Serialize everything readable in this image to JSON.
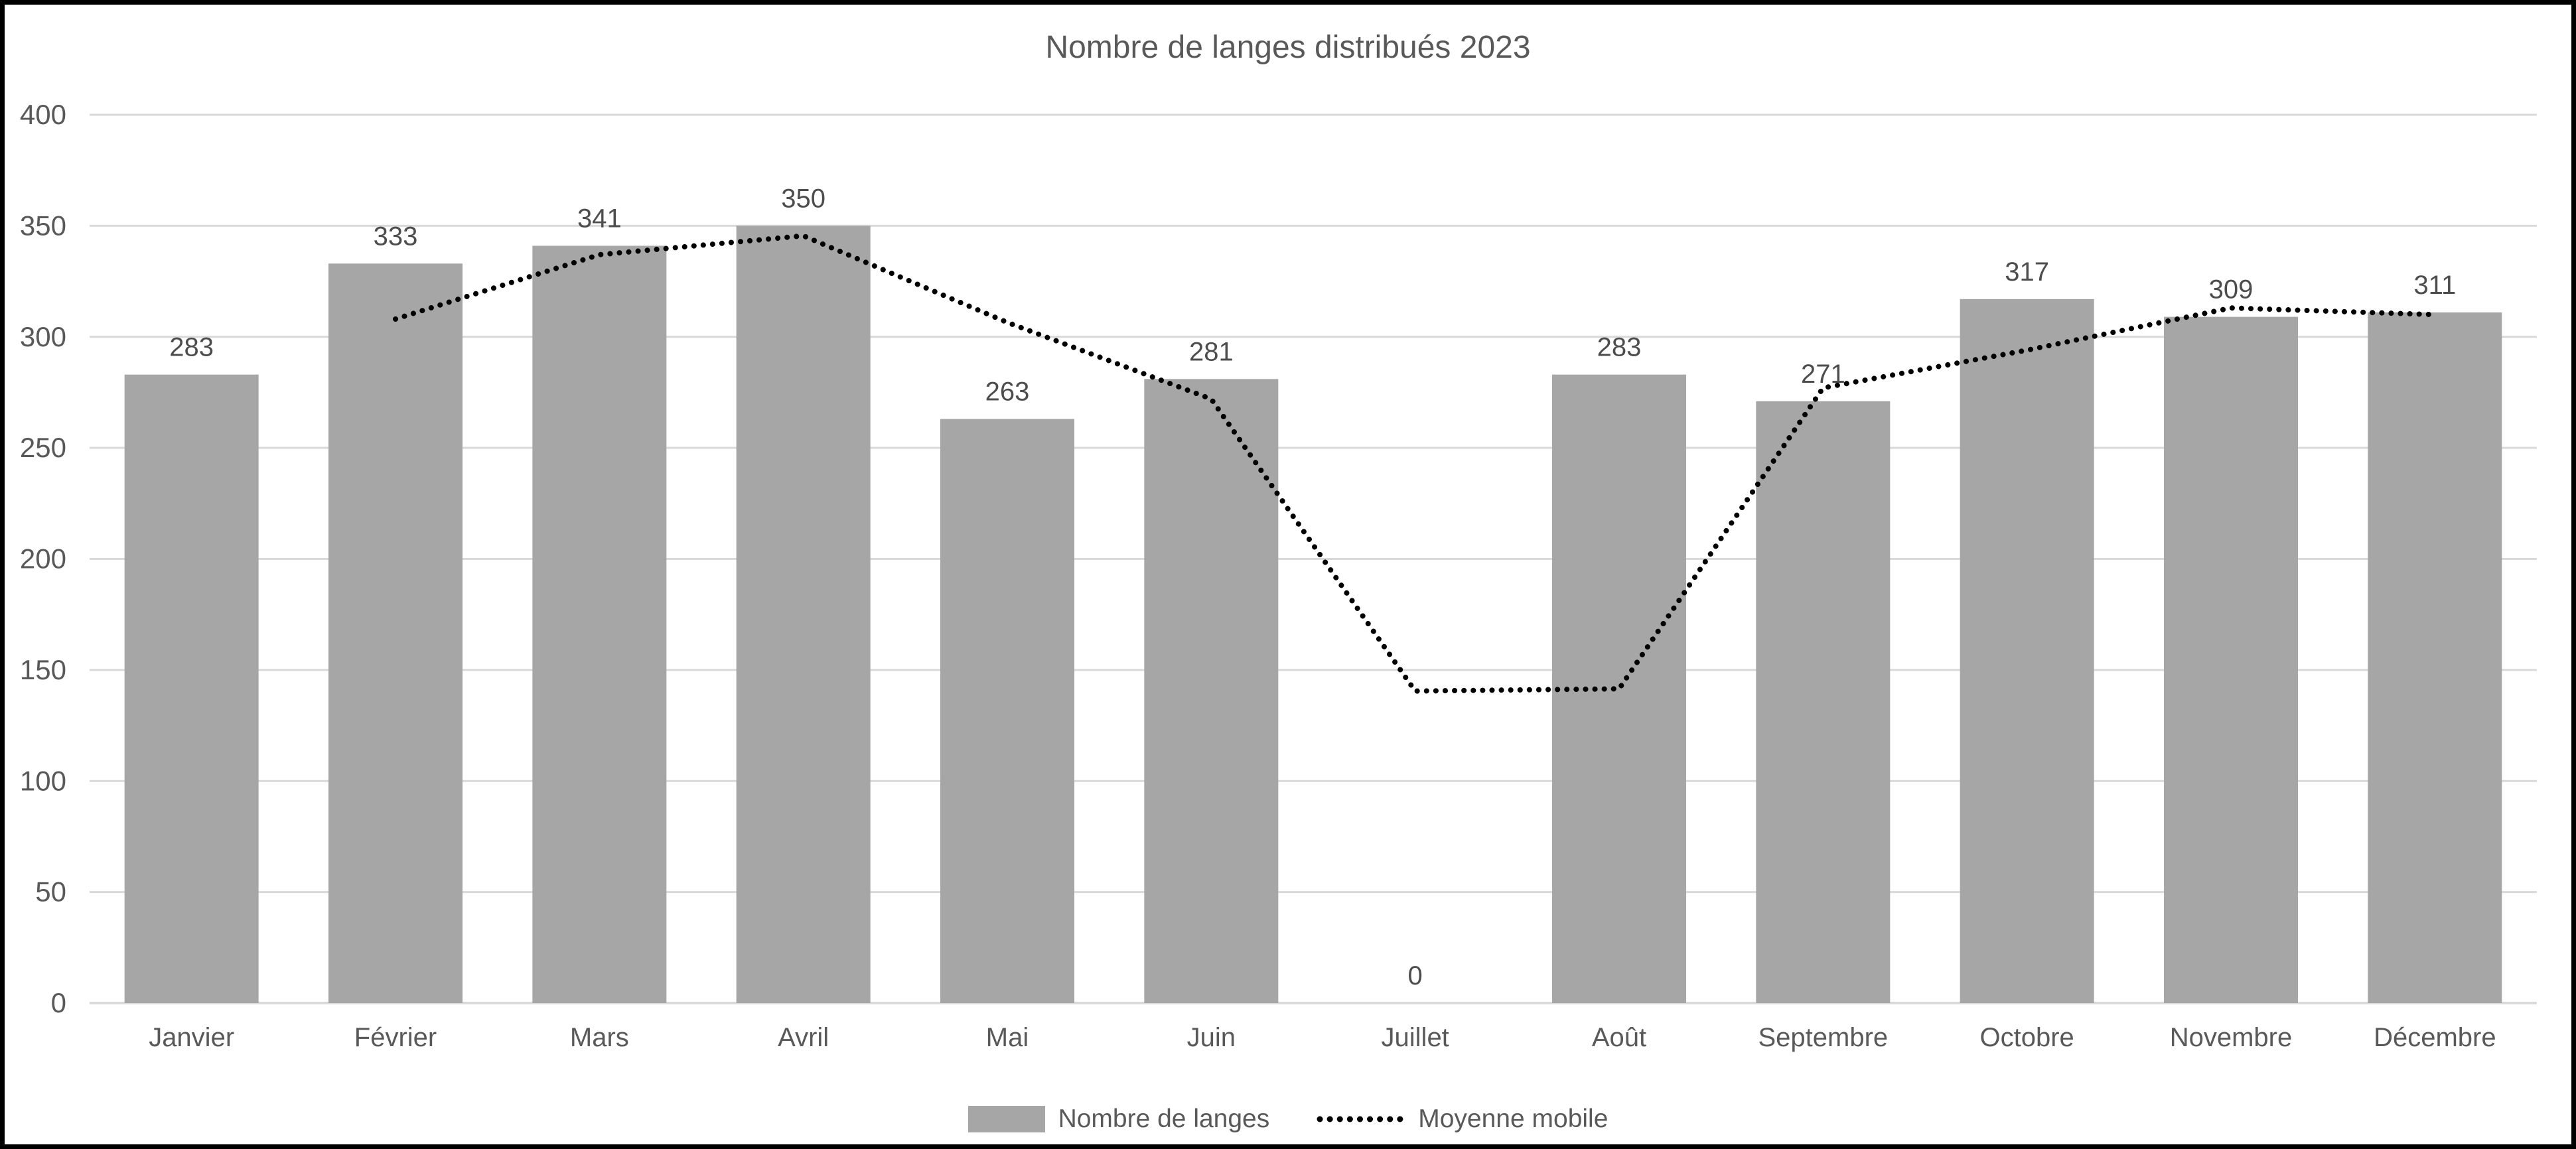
{
  "frame": {
    "border_color": "#000000",
    "background": "#ffffff"
  },
  "chart_data": {
    "type": "bar",
    "title": "Nombre de langes distribués 2023",
    "categories": [
      "Janvier",
      "Février",
      "Mars",
      "Avril",
      "Mai",
      "Juin",
      "Juillet",
      "Août",
      "Septembre",
      "Octobre",
      "Novembre",
      "Décembre"
    ],
    "series": [
      {
        "name": "Nombre de langes",
        "type": "bar",
        "color": "#a6a6a6",
        "values": [
          283,
          333,
          341,
          350,
          263,
          281,
          0,
          283,
          271,
          317,
          309,
          311
        ],
        "data_labels": [
          "283",
          "333",
          "341",
          "350",
          "263",
          "281",
          "0",
          "283",
          "271",
          "317",
          "309",
          "311"
        ]
      },
      {
        "name": "Moyenne mobile",
        "type": "dotted_line",
        "color": "#000000",
        "values": [
          null,
          308,
          337,
          345.5,
          306.5,
          272,
          140.5,
          141.5,
          277,
          294,
          313,
          310
        ]
      }
    ],
    "xlabel": "",
    "ylabel": "",
    "ylim": [
      0,
      400
    ],
    "yticks": [
      0,
      50,
      100,
      150,
      200,
      250,
      300,
      350,
      400
    ],
    "grid": true,
    "legend_position": "bottom",
    "colors": {
      "gridline": "#d9d9d9",
      "axis_line": "#d9d9d9",
      "tick_label": "#595959",
      "data_label": "#4d4d4d",
      "title": "#595959",
      "legend_label": "#595959"
    }
  }
}
